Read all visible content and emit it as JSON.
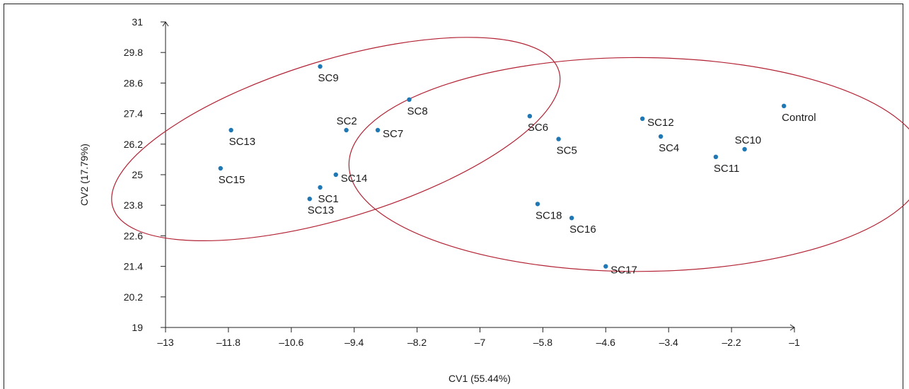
{
  "chart_data": {
    "type": "scatter",
    "title": "",
    "xlabel": "CV1 (55.44%)",
    "ylabel": "CV2 (17.79%)",
    "xlim": [
      -13,
      -1
    ],
    "ylim": [
      19,
      31
    ],
    "x_ticks": [
      -13,
      -11.8,
      -10.6,
      -9.4,
      -8.2,
      -7,
      -5.8,
      -4.6,
      -3.4,
      -2.2,
      -1
    ],
    "x_tick_labels": [
      "–13",
      "–11.8",
      "–10.6",
      "–9.4",
      "–8.2",
      "–7",
      "–5.8",
      "–4.6",
      "–3.4",
      "–2.2",
      "–1"
    ],
    "y_ticks": [
      19,
      20.2,
      21.4,
      22.6,
      23.8,
      25,
      26.2,
      27.4,
      28.6,
      29.8,
      31
    ],
    "y_tick_labels": [
      "19",
      "20.2",
      "21.4",
      "22.6",
      "23.8",
      "25",
      "26.2",
      "27.4",
      "28.6",
      "29.8",
      "31"
    ],
    "grid": false,
    "point_color": "#1f77b4",
    "ellipse_color": "#b22234",
    "points": [
      {
        "label": "SC9",
        "x": -10.05,
        "y": 29.25,
        "label_pos": "below"
      },
      {
        "label": "SC8",
        "x": -8.35,
        "y": 27.95,
        "label_pos": "below"
      },
      {
        "label": "SC2",
        "x": -9.55,
        "y": 26.75,
        "label_pos": "above"
      },
      {
        "label": "SC7",
        "x": -8.95,
        "y": 26.75,
        "label_pos": "right"
      },
      {
        "label": "SC13",
        "x": -11.75,
        "y": 26.75,
        "label_pos": "below"
      },
      {
        "label": "SC15",
        "x": -11.95,
        "y": 25.25,
        "label_pos": "below"
      },
      {
        "label": "SC14",
        "x": -9.75,
        "y": 25.0,
        "label_pos": "right"
      },
      {
        "label": "SC1",
        "x": -10.05,
        "y": 24.5,
        "label_pos": "below"
      },
      {
        "label": "SC13",
        "x": -10.25,
        "y": 24.05,
        "label_pos": "below"
      },
      {
        "label": "SC6",
        "x": -6.05,
        "y": 27.3,
        "label_pos": "below"
      },
      {
        "label": "SC12",
        "x": -3.9,
        "y": 27.2,
        "label_pos": "right"
      },
      {
        "label": "SC4",
        "x": -3.55,
        "y": 26.5,
        "label_pos": "below"
      },
      {
        "label": "SC5",
        "x": -5.5,
        "y": 26.4,
        "label_pos": "below"
      },
      {
        "label": "SC10",
        "x": -1.95,
        "y": 26.0,
        "label_pos": "above"
      },
      {
        "label": "SC11",
        "x": -2.5,
        "y": 25.7,
        "label_pos": "below"
      },
      {
        "label": "Control",
        "x": -1.2,
        "y": 27.7,
        "label_pos": "below"
      },
      {
        "label": "SC18",
        "x": -5.9,
        "y": 23.85,
        "label_pos": "below"
      },
      {
        "label": "SC16",
        "x": -5.25,
        "y": 23.3,
        "label_pos": "below"
      },
      {
        "label": "SC17",
        "x": -4.6,
        "y": 21.4,
        "label_pos": "right"
      }
    ],
    "ellipses": [
      {
        "cx": -9.75,
        "cy": 26.4,
        "rx": 4.45,
        "ry": 3.1,
        "rotate": -17
      },
      {
        "cx": -4.0,
        "cy": 25.4,
        "rx": 5.5,
        "ry": 4.2,
        "rotate": 0
      }
    ]
  }
}
